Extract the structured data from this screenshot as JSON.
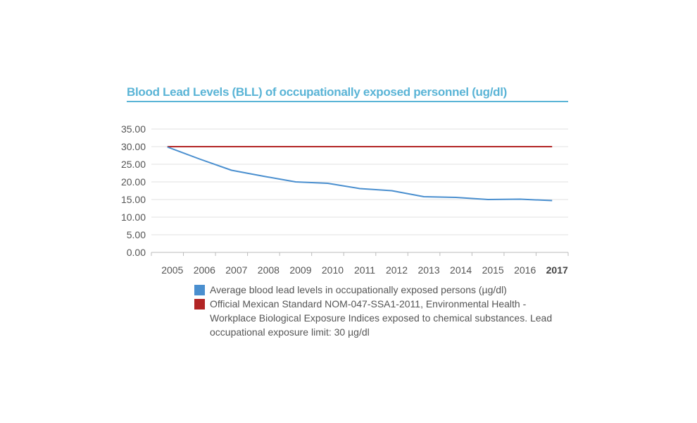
{
  "chart_data": {
    "type": "line",
    "title": "Blood Lead Levels (BLL) of occupationally exposed personnel (ug/dl)",
    "x": [
      "2005",
      "2006",
      "2007",
      "2008",
      "2009",
      "2010",
      "2011",
      "2012",
      "2013",
      "2014",
      "2015",
      "2016",
      "2017"
    ],
    "x_bold": [
      "2017"
    ],
    "y_ticks": [
      "0.00",
      "5.00",
      "10.00",
      "15.00",
      "20.00",
      "25.00",
      "30.00",
      "35.00"
    ],
    "ylim": [
      0,
      35
    ],
    "grid": true,
    "legend_position": "bottom",
    "series": [
      {
        "name": "Average blood lead levels in occupationally exposed persons (µg/dl)",
        "color": "#4a8fcf",
        "values": [
          29.9,
          26.5,
          23.3,
          21.6,
          20.0,
          19.6,
          18.1,
          17.5,
          15.8,
          15.6,
          15.0,
          15.1,
          14.7
        ]
      },
      {
        "name": "Official Mexican Standard NOM-047-SSA1-2011, Environmental Health - Workplace Biological Exposure Indices exposed to chemical substances. Lead occupational exposure limit: 30 µg/dl",
        "color": "#b22424",
        "values": [
          30,
          30,
          30,
          30,
          30,
          30,
          30,
          30,
          30,
          30,
          30,
          30,
          30
        ]
      }
    ]
  }
}
